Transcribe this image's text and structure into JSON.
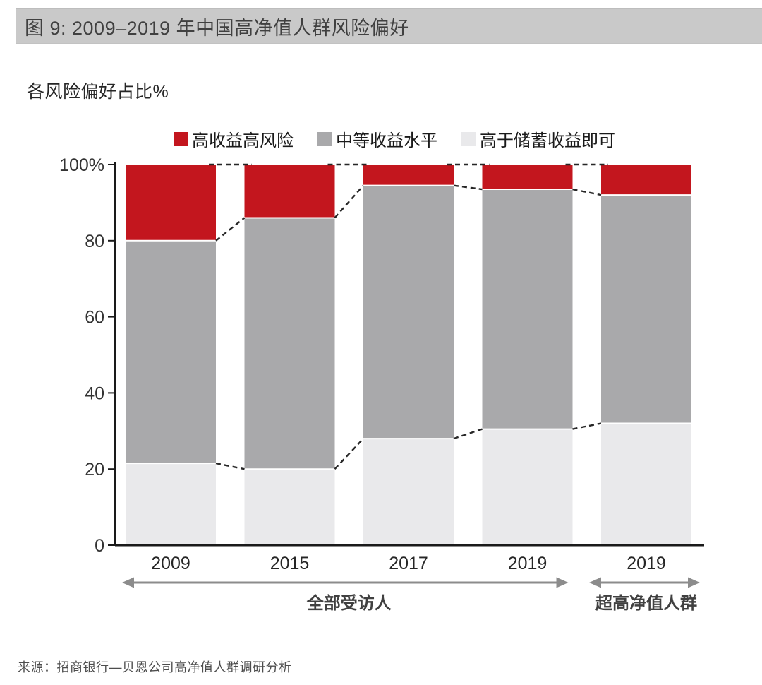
{
  "header": {
    "title": "图 9: 2009–2019 年中国高净值人群风险偏好"
  },
  "source": {
    "text": "来源：招商银行—贝恩公司高净值人群调研分析"
  },
  "chart_data": {
    "type": "bar",
    "stacked": true,
    "title": "图 9: 2009–2019 年中国高净值人群风险偏好",
    "ylabel": "各风险偏好占比%",
    "xlabel": "",
    "categories": [
      "2009",
      "2015",
      "2017",
      "2019",
      "2019"
    ],
    "series": [
      {
        "name": "高于储蓄收益即可",
        "color": "#e9e9eb",
        "values": [
          21.5,
          20,
          28,
          30.5,
          32
        ]
      },
      {
        "name": "中等收益水平",
        "color": "#a9a9ab",
        "values": [
          58.5,
          66,
          66.5,
          63,
          60
        ]
      },
      {
        "name": "高收益高风险",
        "color": "#c3161e",
        "values": [
          20,
          14,
          5.5,
          6.5,
          8
        ]
      }
    ],
    "legend_order": [
      "高收益高风险",
      "中等收益水平",
      "高于储蓄收益即可"
    ],
    "ylim": [
      0,
      100
    ],
    "yticks": [
      {
        "value": 0,
        "label": "0"
      },
      {
        "value": 20,
        "label": "20"
      },
      {
        "value": 40,
        "label": "40"
      },
      {
        "value": 60,
        "label": "60"
      },
      {
        "value": 80,
        "label": "80"
      },
      {
        "value": 100,
        "label": "100%"
      }
    ],
    "groups": [
      {
        "label": "全部受访人",
        "from": 0,
        "to": 3
      },
      {
        "label": "超高净值人群",
        "from": 4,
        "to": 4
      }
    ],
    "grid": false,
    "legend_position": "top",
    "connectors": "dashed",
    "axis_color": "#1a1a1a",
    "tick_label_color": "#333333",
    "dash_color": "#262626",
    "arrow_color": "#8c8c8c",
    "group_label_color": "#404040"
  }
}
